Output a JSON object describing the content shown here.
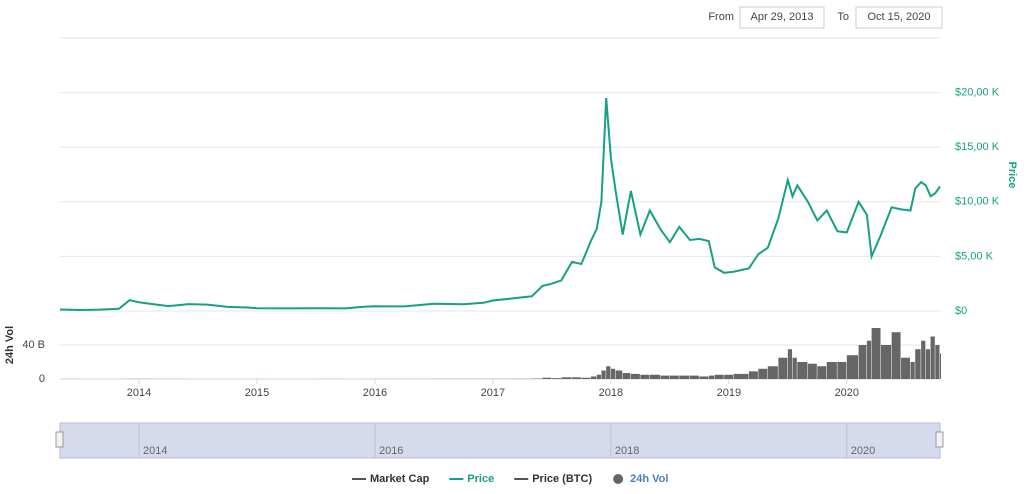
{
  "range_selector": {
    "from_label": "From",
    "from_date": "Apr 29, 2013",
    "to_label": "To",
    "to_date": "Oct 15, 2020"
  },
  "chart_data": {
    "type": "line",
    "ylabel": "Price",
    "y2label": "24h Vol",
    "x": [
      2013.33,
      2013.5,
      2013.67,
      2013.83,
      2013.92,
      2014.0,
      2014.1,
      2014.25,
      2014.42,
      2014.58,
      2014.75,
      2014.92,
      2015.0,
      2015.25,
      2015.5,
      2015.75,
      2015.92,
      2016.0,
      2016.25,
      2016.5,
      2016.75,
      2016.92,
      2017.0,
      2017.17,
      2017.33,
      2017.42,
      2017.5,
      2017.58,
      2017.67,
      2017.75,
      2017.83,
      2017.88,
      2017.92,
      2017.96,
      2018.0,
      2018.04,
      2018.1,
      2018.17,
      2018.25,
      2018.33,
      2018.42,
      2018.5,
      2018.58,
      2018.67,
      2018.75,
      2018.83,
      2018.88,
      2018.96,
      2019.04,
      2019.17,
      2019.25,
      2019.33,
      2019.42,
      2019.5,
      2019.54,
      2019.58,
      2019.67,
      2019.75,
      2019.83,
      2019.92,
      2020.0,
      2020.1,
      2020.17,
      2020.21,
      2020.29,
      2020.38,
      2020.46,
      2020.54,
      2020.58,
      2020.63,
      2020.67,
      2020.71,
      2020.75,
      2020.79
    ],
    "xlim": [
      2013.33,
      2020.79
    ],
    "xticks": [
      2014,
      2015,
      2016,
      2017,
      2018,
      2019,
      2020
    ],
    "ylim": [
      0,
      25000
    ],
    "yticks": [
      {
        "value": 0,
        "label": "$0"
      },
      {
        "value": 5000,
        "label": "$5,00 K"
      },
      {
        "value": 10000,
        "label": "$10,00 K"
      },
      {
        "value": 15000,
        "label": "$15,00 K"
      },
      {
        "value": 20000,
        "label": "$20,00 K"
      }
    ],
    "y2lim": [
      0,
      80
    ],
    "y2ticks": [
      0,
      {
        "value": 40,
        "label": "40 B"
      }
    ],
    "grid": true,
    "series": [
      {
        "name": "Market Cap",
        "color": "#555555",
        "visible": false
      },
      {
        "name": "Price",
        "color": "#16a085",
        "axis": "y",
        "visible": true,
        "values": [
          135,
          95,
          130,
          200,
          1000,
          800,
          650,
          450,
          630,
          590,
          380,
          320,
          250,
          240,
          260,
          240,
          400,
          430,
          420,
          670,
          610,
          750,
          960,
          1150,
          1350,
          2300,
          2500,
          2800,
          4500,
          4300,
          6400,
          7500,
          10000,
          19500,
          14000,
          11000,
          7000,
          11000,
          7000,
          9200,
          7500,
          6300,
          7700,
          6500,
          6600,
          6400,
          4000,
          3500,
          3600,
          3900,
          5200,
          5800,
          8500,
          12000,
          10500,
          11500,
          10000,
          8300,
          9200,
          7300,
          7200,
          10000,
          8800,
          5000,
          7000,
          9500,
          9300,
          9200,
          11200,
          11800,
          11500,
          10500,
          10800,
          11400
        ]
      },
      {
        "name": "Price (BTC)",
        "color": "#555555",
        "visible": false
      },
      {
        "name": "24h Vol",
        "color": "#666666",
        "axis": "y2",
        "visible": true,
        "values": [
          0.05,
          0.03,
          0.03,
          0.05,
          0.2,
          0.1,
          0.05,
          0.05,
          0.03,
          0.03,
          0.03,
          0.02,
          0.03,
          0.03,
          0.05,
          0.03,
          0.05,
          0.05,
          0.05,
          0.1,
          0.08,
          0.1,
          0.15,
          0.2,
          0.5,
          1.5,
          1,
          2,
          2,
          1.5,
          3,
          5,
          10,
          15,
          12,
          10,
          7,
          6,
          5,
          5,
          4,
          4,
          4,
          4,
          3,
          4,
          5,
          5,
          6,
          9,
          12,
          15,
          25,
          35,
          25,
          20,
          18,
          15,
          20,
          20,
          28,
          40,
          45,
          60,
          40,
          55,
          25,
          20,
          35,
          45,
          35,
          50,
          40,
          30
        ]
      }
    ],
    "navigator": {
      "xticks": [
        2014,
        2016,
        2018,
        2020
      ]
    }
  }
}
